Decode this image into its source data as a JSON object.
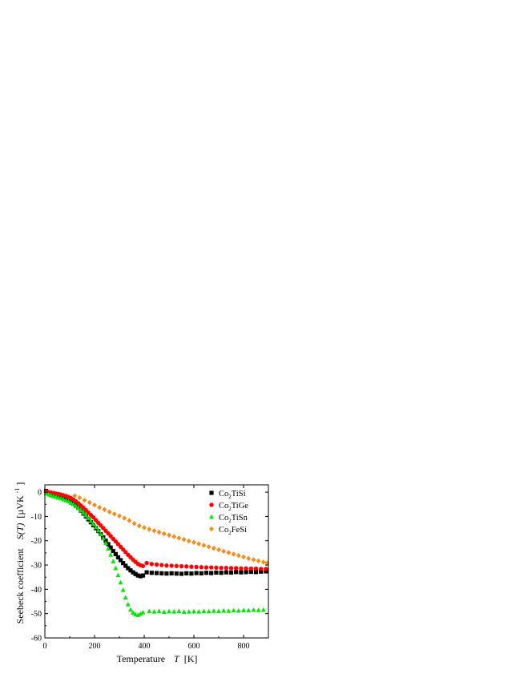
{
  "chart_data": {
    "type": "scatter",
    "xlabel": "Temperature",
    "xlabel_var": "T",
    "xlabel_unit": "[K]",
    "ylabel": "Seebeck coefficient",
    "ylabel_var": "S(T)",
    "ylabel_unit": "[µVK",
    "ylabel_unit_sup": "-1",
    "ylabel_unit_close": "]",
    "xlim": [
      0,
      900
    ],
    "ylim": [
      -60,
      3
    ],
    "xticks": [
      0,
      200,
      400,
      600,
      800
    ],
    "yticks": [
      0,
      -10,
      -20,
      -30,
      -40,
      -50,
      -60
    ],
    "grid": false,
    "legend_position": "top-right",
    "series": [
      {
        "name": "Co2TiSi",
        "label_parts": [
          "Co",
          "2",
          "TiSi"
        ],
        "marker": "square",
        "color": "#000000",
        "x": [
          5,
          15,
          25,
          35,
          45,
          55,
          65,
          75,
          85,
          95,
          105,
          115,
          125,
          135,
          145,
          155,
          165,
          175,
          185,
          195,
          205,
          215,
          225,
          235,
          245,
          255,
          265,
          275,
          285,
          295,
          305,
          315,
          325,
          335,
          345,
          355,
          365,
          375,
          385,
          395,
          410,
          430,
          450,
          470,
          490,
          510,
          530,
          550,
          570,
          590,
          610,
          630,
          650,
          670,
          690,
          710,
          730,
          750,
          770,
          790,
          810,
          830,
          850,
          870,
          890
        ],
        "y": [
          0.5,
          -0.5,
          -0.8,
          -1.0,
          -1.2,
          -1.5,
          -1.8,
          -2.1,
          -2.5,
          -3.0,
          -3.8,
          -4.6,
          -5.5,
          -6.5,
          -7.6,
          -8.8,
          -10.0,
          -11.2,
          -12.4,
          -13.6,
          -14.8,
          -16.0,
          -17.3,
          -18.6,
          -20.0,
          -21.4,
          -22.8,
          -24.2,
          -25.5,
          -26.8,
          -28.0,
          -29.2,
          -30.3,
          -31.3,
          -32.2,
          -33.0,
          -33.7,
          -34.3,
          -34.6,
          -34.3,
          -33.0,
          -33.2,
          -33.3,
          -33.4,
          -33.5,
          -33.4,
          -33.5,
          -33.6,
          -33.4,
          -33.5,
          -33.3,
          -33.4,
          -33.2,
          -33.3,
          -33.1,
          -33.2,
          -33.0,
          -33.1,
          -32.9,
          -33.0,
          -32.9,
          -32.8,
          -32.9,
          -32.7,
          -32.6
        ]
      },
      {
        "name": "Co2TiGe",
        "label_parts": [
          "Co",
          "2",
          "TiGe"
        ],
        "marker": "circle",
        "color": "#ff0000",
        "x": [
          5,
          15,
          25,
          35,
          45,
          55,
          65,
          75,
          85,
          95,
          105,
          115,
          125,
          135,
          145,
          155,
          165,
          175,
          185,
          195,
          205,
          215,
          225,
          235,
          245,
          255,
          265,
          275,
          285,
          295,
          305,
          315,
          325,
          335,
          345,
          355,
          365,
          375,
          385,
          395,
          410,
          430,
          450,
          470,
          490,
          510,
          530,
          550,
          570,
          590,
          610,
          630,
          650,
          670,
          690,
          710,
          730,
          750,
          770,
          790,
          810,
          830,
          850,
          870,
          890
        ],
        "y": [
          0.3,
          0.0,
          -0.2,
          -0.4,
          -0.6,
          -0.8,
          -1.0,
          -1.3,
          -1.6,
          -2.0,
          -2.5,
          -3.1,
          -3.8,
          -4.6,
          -5.5,
          -6.4,
          -7.4,
          -8.4,
          -9.4,
          -10.4,
          -11.5,
          -12.6,
          -13.7,
          -14.8,
          -15.9,
          -17.0,
          -18.1,
          -19.2,
          -20.3,
          -21.4,
          -22.5,
          -23.6,
          -24.7,
          -25.8,
          -26.8,
          -27.8,
          -28.7,
          -29.5,
          -30.1,
          -30.4,
          -29.2,
          -29.6,
          -29.8,
          -30.0,
          -30.2,
          -30.3,
          -30.4,
          -30.5,
          -30.6,
          -30.7,
          -30.8,
          -30.9,
          -31.0,
          -31.0,
          -31.1,
          -31.2,
          -31.2,
          -31.3,
          -31.3,
          -31.4,
          -31.4,
          -31.5,
          -31.5,
          -31.6,
          -31.6
        ]
      },
      {
        "name": "Co2TiSn",
        "label_parts": [
          "Co",
          "2",
          "TiSn"
        ],
        "marker": "triangle",
        "color": "#00e600",
        "x": [
          5,
          15,
          25,
          35,
          45,
          55,
          65,
          75,
          85,
          95,
          105,
          115,
          125,
          135,
          145,
          155,
          165,
          175,
          185,
          195,
          205,
          215,
          225,
          235,
          245,
          255,
          265,
          275,
          285,
          295,
          305,
          315,
          325,
          335,
          345,
          355,
          365,
          375,
          385,
          395,
          420,
          440,
          460,
          480,
          500,
          520,
          540,
          560,
          580,
          600,
          620,
          640,
          660,
          680,
          700,
          720,
          740,
          760,
          780,
          800,
          820,
          840,
          860,
          880
        ],
        "y": [
          -0.5,
          -1.0,
          -1.4,
          -1.7,
          -2.0,
          -2.3,
          -2.6,
          -3.0,
          -3.4,
          -3.8,
          -4.4,
          -5.0,
          -5.8,
          -6.6,
          -7.5,
          -8.5,
          -9.6,
          -10.7,
          -11.9,
          -13.1,
          -14.4,
          -15.8,
          -17.3,
          -19.0,
          -21.0,
          -23.3,
          -25.8,
          -28.5,
          -31.3,
          -34.2,
          -37.2,
          -40.3,
          -43.4,
          -46.2,
          -48.4,
          -49.6,
          -50.3,
          -50.6,
          -50.1,
          -49.5,
          -49.0,
          -49.2,
          -49.0,
          -49.3,
          -49.1,
          -49.2,
          -49.0,
          -49.3,
          -49.2,
          -49.1,
          -49.2,
          -49.0,
          -49.1,
          -48.9,
          -49.0,
          -48.8,
          -48.9,
          -48.7,
          -48.8,
          -48.6,
          -48.7,
          -48.5,
          -48.6,
          -48.5
        ]
      },
      {
        "name": "Co2FeSi",
        "label_parts": [
          "Co",
          "2",
          "FeSi"
        ],
        "marker": "diamond",
        "color": "#f28c1e",
        "x": [
          120,
          140,
          160,
          180,
          200,
          220,
          240,
          260,
          280,
          300,
          320,
          340,
          360,
          380,
          400,
          420,
          440,
          460,
          480,
          500,
          520,
          540,
          560,
          580,
          600,
          620,
          640,
          660,
          680,
          700,
          720,
          740,
          760,
          780,
          800,
          820,
          840,
          860,
          880,
          895
        ],
        "y": [
          -1.5,
          -2.3,
          -3.3,
          -4.3,
          -5.3,
          -6.3,
          -7.2,
          -8.1,
          -9.0,
          -9.8,
          -10.7,
          -11.7,
          -12.9,
          -13.9,
          -14.6,
          -15.3,
          -15.9,
          -16.5,
          -17.1,
          -17.7,
          -18.3,
          -18.9,
          -19.5,
          -20.1,
          -20.7,
          -21.3,
          -21.9,
          -22.5,
          -23.1,
          -23.7,
          -24.3,
          -24.9,
          -25.5,
          -26.1,
          -26.7,
          -27.3,
          -27.8,
          -28.3,
          -28.8,
          -29.2
        ]
      }
    ]
  }
}
